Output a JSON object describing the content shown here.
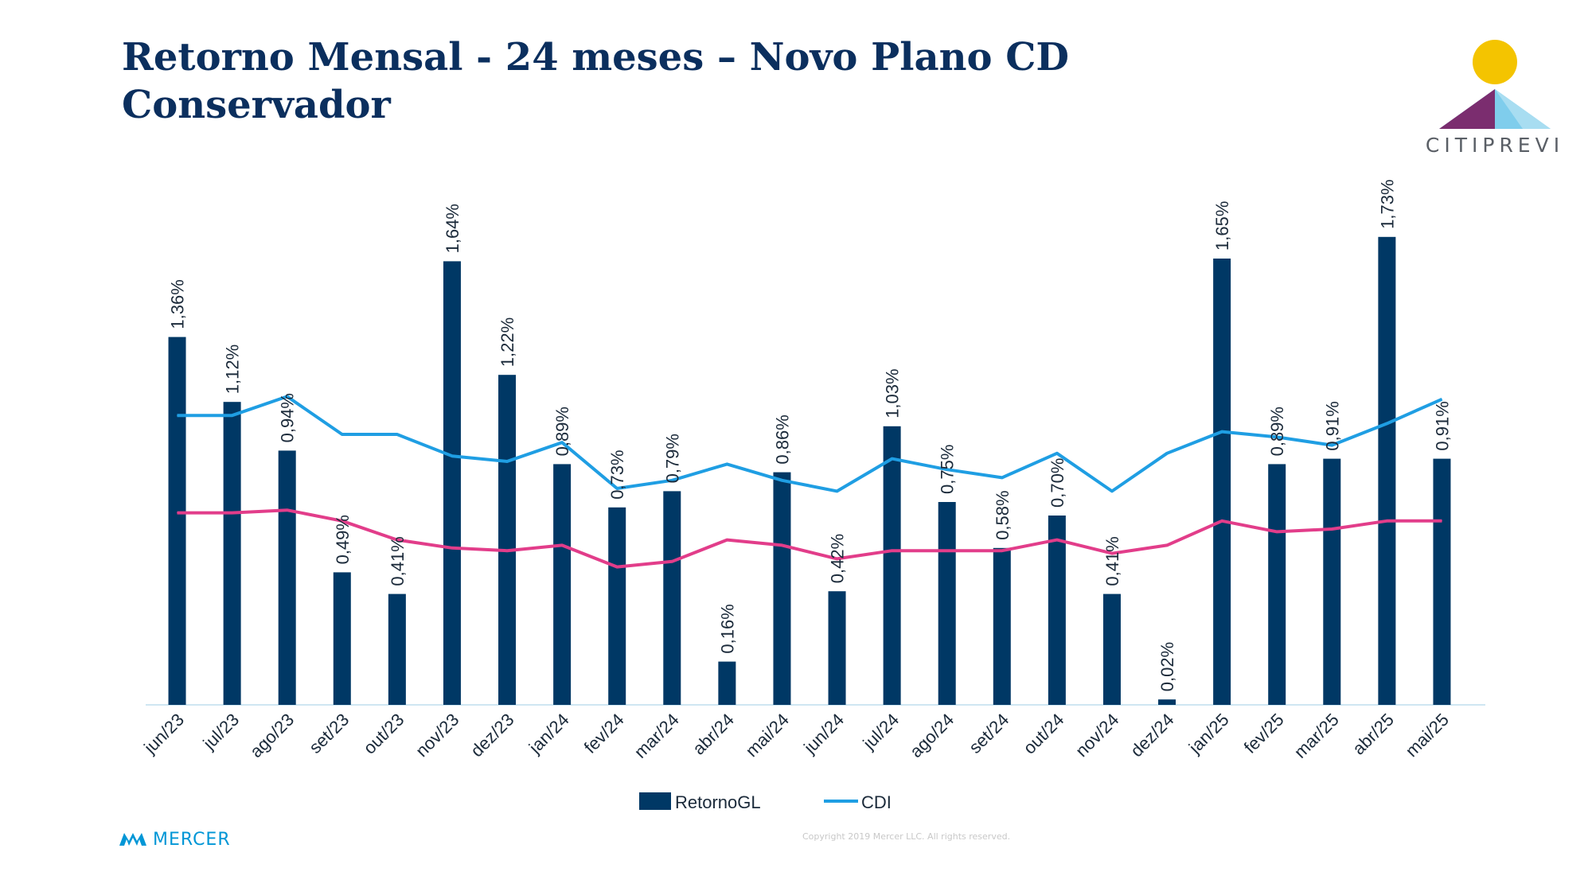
{
  "page": {
    "title_line1": "Retorno Mensal - 24 meses – Novo Plano CD",
    "title_line2": "Conservador",
    "logo_text": "CITIPREVI",
    "footer_brand": "MERCER",
    "copyright": "Copyright 2019 Mercer LLC. All rights reserved."
  },
  "colors": {
    "bars": "#003865",
    "cdi": "#1f9ee3",
    "pink": "#e23d8a",
    "title": "#0b2f5e"
  },
  "chart_data": {
    "type": "bar",
    "title": "",
    "categories": [
      "jun/23",
      "jul/23",
      "ago/23",
      "set/23",
      "out/23",
      "nov/23",
      "dez/23",
      "jan/24",
      "fev/24",
      "mar/24",
      "abr/24",
      "mai/24",
      "jun/24",
      "jul/24",
      "ago/24",
      "set/24",
      "out/24",
      "nov/24",
      "dez/24",
      "jan/25",
      "fev/25",
      "mar/25",
      "abr/25",
      "mai/25"
    ],
    "series": [
      {
        "name": "RetornoGL",
        "type": "bar",
        "values": [
          1.36,
          1.12,
          0.94,
          0.49,
          0.41,
          1.64,
          1.22,
          0.89,
          0.73,
          0.79,
          0.16,
          0.86,
          0.42,
          1.03,
          0.75,
          0.58,
          0.7,
          0.41,
          0.02,
          1.65,
          0.89,
          0.91,
          1.73,
          0.91
        ],
        "labels": [
          "1,36%",
          "1,12%",
          "0,94%",
          "0,49%",
          "0,41%",
          "1,64%",
          "1,22%",
          "0,89%",
          "0,73%",
          "0,79%",
          "0,16%",
          "0,86%",
          "0,42%",
          "1,03%",
          "0,75%",
          "0,58%",
          "0,70%",
          "0,41%",
          "0,02%",
          "1,65%",
          "0,89%",
          "0,91%",
          "1,73%",
          "0,91%"
        ]
      },
      {
        "name": "CDI",
        "type": "line",
        "values": [
          1.07,
          1.07,
          1.14,
          1.0,
          1.0,
          0.92,
          0.9,
          0.97,
          0.8,
          0.83,
          0.89,
          0.83,
          0.79,
          0.91,
          0.87,
          0.84,
          0.93,
          0.79,
          0.93,
          1.01,
          0.99,
          0.96,
          1.04,
          1.13
        ]
      },
      {
        "type": "line",
        "values": [
          0.71,
          0.71,
          0.72,
          0.68,
          0.61,
          0.58,
          0.57,
          0.59,
          0.51,
          0.53,
          0.61,
          0.59,
          0.54,
          0.57,
          0.57,
          0.57,
          0.61,
          0.56,
          0.59,
          0.68,
          0.64,
          0.65,
          0.68,
          0.68
        ]
      }
    ],
    "ylim": [
      0,
      2.0
    ],
    "legend": [
      "RetornoGL",
      "CDI"
    ],
    "legend_position": "bottom",
    "grid": false
  }
}
